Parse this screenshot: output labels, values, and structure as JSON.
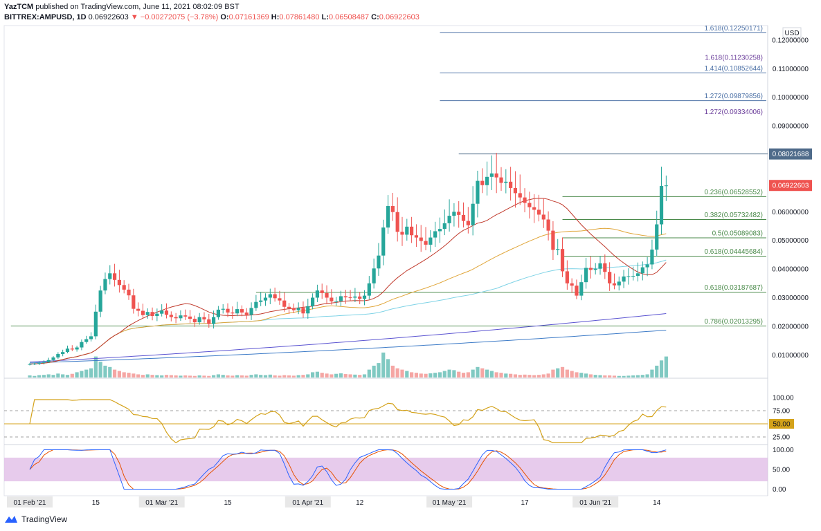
{
  "header": {
    "author": "YazTCM",
    "published": "published on TradingView.com, June 11, 2021 08:02:09 BST",
    "symbol": "BITTREX:AMPUSD, 1D",
    "price": "0.06922603",
    "change": "−0.00272075 (−3.78%)",
    "o_label": "O:",
    "o": "0.07161369",
    "h_label": "H:",
    "h": "0.07861480",
    "l_label": "L:",
    "l": "0.06508487",
    "c_label": "C:",
    "c": "0.06922603"
  },
  "footer": {
    "brand": "TradingView"
  },
  "colors": {
    "up": "#26a69a",
    "down": "#ef5350",
    "up_vol": "#80c9c2",
    "down_vol": "#f5a6a4",
    "ma20": "#c0392b",
    "ma50": "#e0a63a",
    "ma100": "#7fd3e6",
    "ma200": "#5b54d1",
    "ma300": "#3d7bc7",
    "rsi": "#d4a21a",
    "stoch_k": "#2962ff",
    "stoch_d": "#e65100",
    "stoch_band": "#e1bee7",
    "fib_ext": "#4a6fa5",
    "fib_ret": "#4a8a4a",
    "fib_purple": "#6a3d9a"
  },
  "chart_data": {
    "type": "candlestick",
    "price_unit": "USD",
    "price_axis": {
      "ticks": [
        "0.12000000",
        "0.11000000",
        "0.10000000",
        "0.09000000",
        "0.08000000",
        "0.07000000",
        "0.06000000",
        "0.05000000",
        "0.04000000",
        "0.03000000",
        "0.02000000",
        "0.01000000"
      ],
      "tick_values": [
        0.12,
        0.11,
        0.1,
        0.09,
        0.08,
        0.07,
        0.06,
        0.05,
        0.04,
        0.03,
        0.02,
        0.01
      ]
    },
    "price_labels": {
      "resistance": "0.08021688",
      "resistance_value": 0.0802,
      "last": "0.06922603",
      "last_value": 0.0692
    },
    "x_labels": [
      {
        "label": "01 Feb '21",
        "day": 0,
        "boxed": true
      },
      {
        "label": "15",
        "day": 14,
        "boxed": false
      },
      {
        "label": "01 Mar '21",
        "day": 28,
        "boxed": true
      },
      {
        "label": "15",
        "day": 42,
        "boxed": false
      },
      {
        "label": "01 Apr '21",
        "day": 59,
        "boxed": true
      },
      {
        "label": "12",
        "day": 70,
        "boxed": false
      },
      {
        "label": "01 May '21",
        "day": 89,
        "boxed": true
      },
      {
        "label": "17",
        "day": 105,
        "boxed": false
      },
      {
        "label": "01 Jun '21",
        "day": 120,
        "boxed": true
      },
      {
        "label": "14",
        "day": 133,
        "boxed": false
      }
    ],
    "fib_levels": [
      {
        "ratio": "1.618",
        "value": "0.12250171",
        "v": 0.1225,
        "x0_day": 87,
        "kind": "ext"
      },
      {
        "ratio": "1.618",
        "value": "0.11230258",
        "v": 0.1123,
        "x0_day": null,
        "kind": "purple"
      },
      {
        "ratio": "1.414",
        "value": "0.10852644",
        "v": 0.1085,
        "x0_day": 87,
        "kind": "ext"
      },
      {
        "ratio": "1.272",
        "value": "0.09879856",
        "v": 0.0988,
        "x0_day": 87,
        "kind": "ext"
      },
      {
        "ratio": "1.272",
        "value": "0.09334006",
        "v": 0.0933,
        "x0_day": null,
        "kind": "purple"
      },
      {
        "ratio": "0.236",
        "value": "0.06528552",
        "v": 0.0653,
        "x0_day": 113,
        "kind": "ret"
      },
      {
        "ratio": "0.382",
        "value": "0.05732482",
        "v": 0.0573,
        "x0_day": 113,
        "kind": "ret"
      },
      {
        "ratio": "0.5",
        "value": "0.05089083",
        "v": 0.0509,
        "x0_day": 113,
        "kind": "ret"
      },
      {
        "ratio": "0.618",
        "value": "0.04445684",
        "v": 0.0445,
        "x0_day": 113,
        "kind": "ret"
      },
      {
        "ratio": "0.618",
        "value": "0.03187687",
        "v": 0.0319,
        "x0_day": 48,
        "kind": "ret"
      },
      {
        "ratio": "0.786",
        "value": "0.02013295",
        "v": 0.0201,
        "x0_day": -4,
        "kind": "ret"
      }
    ],
    "resistance_line_start_day": 91,
    "close_series": [
      0.0068,
      0.0069,
      0.0072,
      0.0075,
      0.0082,
      0.0091,
      0.0103,
      0.011,
      0.0122,
      0.0119,
      0.0126,
      0.0145,
      0.0155,
      0.0165,
      0.0251,
      0.0325,
      0.0365,
      0.0385,
      0.0362,
      0.0344,
      0.0328,
      0.0308,
      0.0261,
      0.0254,
      0.0239,
      0.025,
      0.0236,
      0.0244,
      0.0255,
      0.024,
      0.0232,
      0.0228,
      0.0238,
      0.0234,
      0.0226,
      0.0214,
      0.0232,
      0.0224,
      0.0208,
      0.0232,
      0.0258,
      0.0261,
      0.0248,
      0.0245,
      0.026,
      0.0248,
      0.024,
      0.0264,
      0.0285,
      0.029,
      0.03,
      0.0312,
      0.0298,
      0.029,
      0.0268,
      0.0263,
      0.0256,
      0.0264,
      0.0245,
      0.027,
      0.03,
      0.0325,
      0.0316,
      0.03,
      0.0287,
      0.0288,
      0.0305,
      0.0301,
      0.03,
      0.0304,
      0.0296,
      0.0307,
      0.035,
      0.0402,
      0.0447,
      0.0545,
      0.062,
      0.0599,
      0.053,
      0.052,
      0.0548,
      0.0518,
      0.051,
      0.0498,
      0.0485,
      0.051,
      0.0532,
      0.054,
      0.056,
      0.0586,
      0.06,
      0.0589,
      0.0568,
      0.0553,
      0.0628,
      0.0708,
      0.0693,
      0.0722,
      0.0734,
      0.072,
      0.0701,
      0.0705,
      0.0683,
      0.0665,
      0.065,
      0.0631,
      0.0616,
      0.0607,
      0.059,
      0.0573,
      0.0534,
      0.0467,
      0.047,
      0.0392,
      0.035,
      0.0342,
      0.0307,
      0.0354,
      0.0404,
      0.0397,
      0.0401,
      0.042,
      0.039,
      0.035,
      0.0343,
      0.0356,
      0.0374,
      0.0375,
      0.0376,
      0.0385,
      0.0406,
      0.0416,
      0.0468,
      0.0556,
      0.069,
      0.0692
    ],
    "volume_relative": [
      0.08,
      0.06,
      0.09,
      0.1,
      0.12,
      0.1,
      0.15,
      0.12,
      0.1,
      0.14,
      0.2,
      0.25,
      0.3,
      0.35,
      0.8,
      0.6,
      0.45,
      0.4,
      0.3,
      0.25,
      0.2,
      0.18,
      0.15,
      0.12,
      0.1,
      0.12,
      0.1,
      0.09,
      0.08,
      0.1,
      0.09,
      0.08,
      0.07,
      0.08,
      0.07,
      0.06,
      0.08,
      0.07,
      0.06,
      0.09,
      0.12,
      0.1,
      0.08,
      0.07,
      0.09,
      0.08,
      0.07,
      0.1,
      0.12,
      0.1,
      0.09,
      0.11,
      0.08,
      0.07,
      0.09,
      0.08,
      0.07,
      0.09,
      0.1,
      0.12,
      0.2,
      0.22,
      0.18,
      0.15,
      0.12,
      0.14,
      0.16,
      0.13,
      0.12,
      0.11,
      0.1,
      0.12,
      0.3,
      0.45,
      0.55,
      0.95,
      0.7,
      0.45,
      0.35,
      0.3,
      0.25,
      0.2,
      0.18,
      0.15,
      0.14,
      0.16,
      0.18,
      0.2,
      0.25,
      0.3,
      0.28,
      0.22,
      0.18,
      0.2,
      0.3,
      0.4,
      0.35,
      0.3,
      0.25,
      0.2,
      0.18,
      0.15,
      0.14,
      0.12,
      0.1,
      0.11,
      0.1,
      0.09,
      0.1,
      0.12,
      0.15,
      0.3,
      0.35,
      0.4,
      0.3,
      0.25,
      0.2,
      0.18,
      0.15,
      0.12,
      0.1,
      0.09,
      0.08,
      0.08,
      0.07,
      0.06,
      0.06,
      0.07,
      0.08,
      0.09,
      0.1,
      0.12,
      0.3,
      0.45,
      0.65,
      0.8
    ],
    "rsi_axis": {
      "ticks": [
        "100.00",
        "75.00",
        "25.00"
      ],
      "tick_values": [
        100,
        75,
        25
      ],
      "current": "50.00",
      "current_value": 50
    },
    "stoch_axis": {
      "ticks": [
        "100.00",
        "50.00",
        "0.00"
      ],
      "tick_values": [
        100,
        50,
        0
      ]
    }
  }
}
